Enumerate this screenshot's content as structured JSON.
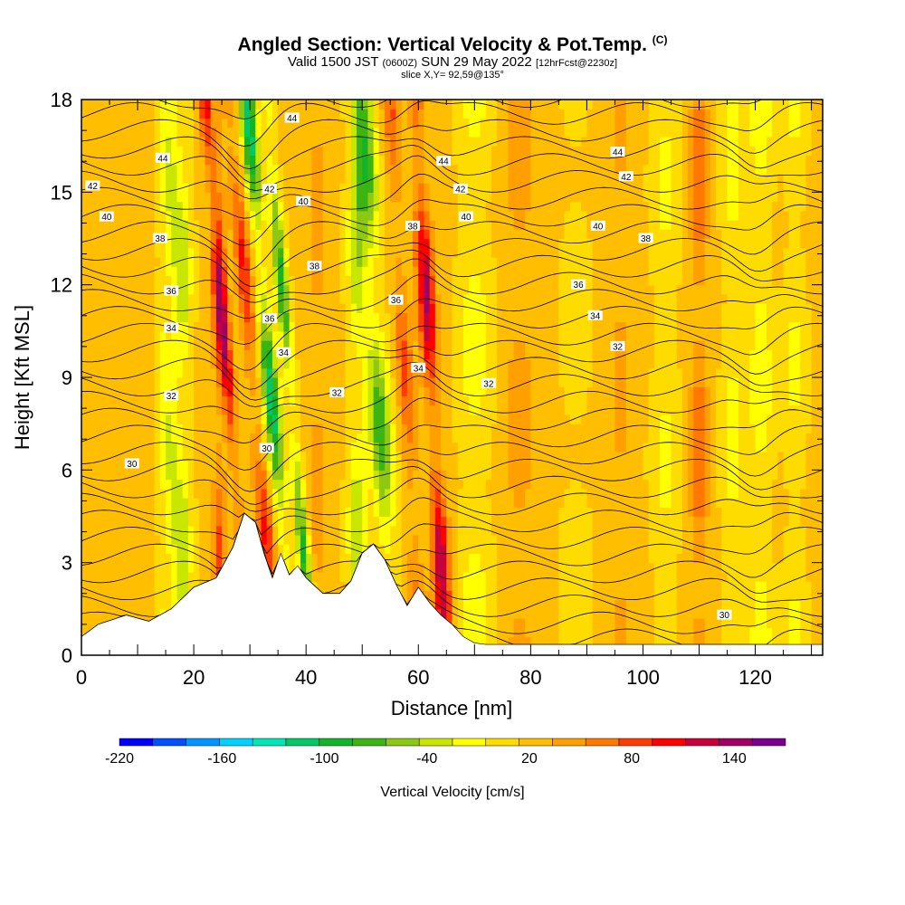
{
  "title": {
    "main": "Angled Section: Vertical Velocity & Pot.Temp.",
    "mark": "(C)",
    "valid_prefix": "Valid 1500 JST",
    "valid_z": "(0600Z)",
    "valid_date": "SUN 29 May 2022",
    "forecast": "[12hrFcst@2230z]",
    "slice": "slice X,Y= 92,59@135°"
  },
  "chart_data": {
    "type": "heatmap",
    "xlabel": "Distance [nm]",
    "ylabel": "Height [Kft MSL]",
    "xlim": [
      0,
      132
    ],
    "ylim": [
      0,
      18
    ],
    "x_ticks": [
      "0",
      "20",
      "40",
      "60",
      "80",
      "100",
      "120"
    ],
    "x_tick_values": [
      0,
      20,
      40,
      60,
      80,
      100,
      120
    ],
    "y_ticks": [
      "0",
      "3",
      "6",
      "9",
      "12",
      "15",
      "18"
    ],
    "y_tick_values": [
      0,
      3,
      6,
      9,
      12,
      15,
      18
    ],
    "colorbar": {
      "label": "Vertical Velocity [cm/s]",
      "tick_labels": [
        "-220",
        "-160",
        "-100",
        "-40",
        "20",
        "80",
        "140"
      ],
      "tick_values": [
        -220,
        -160,
        -100,
        -40,
        20,
        80,
        140
      ],
      "range": [
        -220,
        170
      ],
      "colors": [
        "#0000ff",
        "#0050ff",
        "#0096ff",
        "#00d2ff",
        "#00e6b4",
        "#00c864",
        "#14b428",
        "#3cb414",
        "#8cc814",
        "#c8e600",
        "#ffff00",
        "#ffdc00",
        "#ffbe00",
        "#ffa000",
        "#ff7800",
        "#ff3c00",
        "#ff0000",
        "#c8003c",
        "#a00064",
        "#78008c"
      ]
    },
    "contour_labels": [
      {
        "text": "44",
        "x": 14.5,
        "y": 16.1
      },
      {
        "text": "44",
        "x": 37.5,
        "y": 17.4
      },
      {
        "text": "44",
        "x": 64.5,
        "y": 16.0
      },
      {
        "text": "44",
        "x": 95.5,
        "y": 16.3
      },
      {
        "text": "42",
        "x": 2.0,
        "y": 15.2
      },
      {
        "text": "42",
        "x": 33.5,
        "y": 15.1
      },
      {
        "text": "42",
        "x": 67.5,
        "y": 15.1
      },
      {
        "text": "42",
        "x": 97.0,
        "y": 15.5
      },
      {
        "text": "40",
        "x": 4.5,
        "y": 14.2
      },
      {
        "text": "40",
        "x": 39.5,
        "y": 14.7
      },
      {
        "text": "40",
        "x": 68.5,
        "y": 14.2
      },
      {
        "text": "40",
        "x": 92.0,
        "y": 13.9
      },
      {
        "text": "38",
        "x": 14.0,
        "y": 13.5
      },
      {
        "text": "38",
        "x": 41.5,
        "y": 12.6
      },
      {
        "text": "38",
        "x": 59.0,
        "y": 13.9
      },
      {
        "text": "38",
        "x": 100.5,
        "y": 13.5
      },
      {
        "text": "36",
        "x": 16.0,
        "y": 11.8
      },
      {
        "text": "36",
        "x": 33.5,
        "y": 10.9
      },
      {
        "text": "36",
        "x": 56.0,
        "y": 11.5
      },
      {
        "text": "36",
        "x": 88.5,
        "y": 12.0
      },
      {
        "text": "34",
        "x": 16.0,
        "y": 10.6
      },
      {
        "text": "34",
        "x": 36.0,
        "y": 9.8
      },
      {
        "text": "34",
        "x": 60.0,
        "y": 9.3
      },
      {
        "text": "34",
        "x": 91.5,
        "y": 11.0
      },
      {
        "text": "32",
        "x": 16.0,
        "y": 8.4
      },
      {
        "text": "32",
        "x": 45.5,
        "y": 8.5
      },
      {
        "text": "32",
        "x": 72.5,
        "y": 8.8
      },
      {
        "text": "32",
        "x": 95.5,
        "y": 10.0
      },
      {
        "text": "30",
        "x": 9.0,
        "y": 6.2
      },
      {
        "text": "30",
        "x": 33.0,
        "y": 6.7
      },
      {
        "text": "30",
        "x": 114.5,
        "y": 1.3
      }
    ]
  }
}
